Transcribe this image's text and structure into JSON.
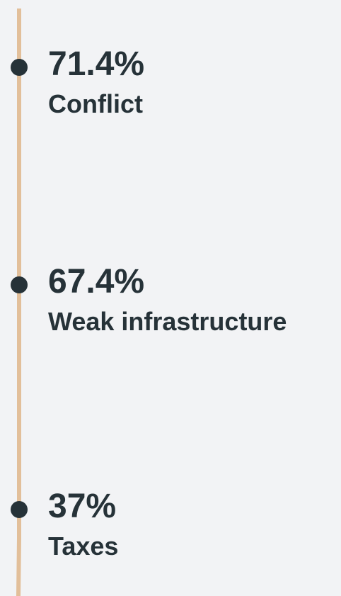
{
  "items": [
    {
      "value": "71.4%",
      "label": "Conflict"
    },
    {
      "value": "67.4%",
      "label": "Weak infrastructure"
    },
    {
      "value": "37%",
      "label": "Taxes"
    }
  ]
}
